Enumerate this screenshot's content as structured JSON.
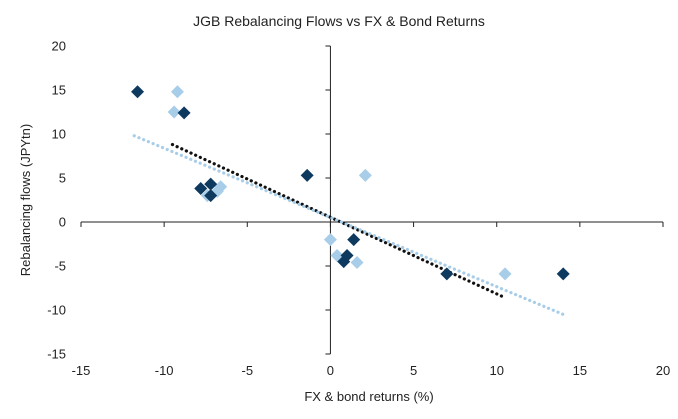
{
  "chart_data": {
    "type": "scatter",
    "title": "JGB Rebalancing Flows vs FX & Bond Returns",
    "xlabel": "FX & bond returns (%)",
    "ylabel": "Rebalancing flows  (JPYtn)",
    "xlim": [
      -15,
      20
    ],
    "ylim": [
      -15,
      20
    ],
    "xticks": [
      -15,
      -10,
      -5,
      0,
      5,
      10,
      15,
      20
    ],
    "yticks": [
      -15,
      -10,
      -5,
      0,
      5,
      10,
      15,
      20
    ],
    "grid": false,
    "legend": "none",
    "series": [
      {
        "color": "#0f3a5f",
        "marker": "diamond",
        "points": [
          {
            "x": -11.6,
            "y": 14.8
          },
          {
            "x": -8.8,
            "y": 12.4
          },
          {
            "x": -7.8,
            "y": 3.8
          },
          {
            "x": -7.2,
            "y": 4.3
          },
          {
            "x": -7.2,
            "y": 3.0
          },
          {
            "x": -1.4,
            "y": 5.3
          },
          {
            "x": 1.4,
            "y": -2.0
          },
          {
            "x": 1.0,
            "y": -3.8
          },
          {
            "x": 0.8,
            "y": -4.5
          },
          {
            "x": 7.0,
            "y": -5.9
          },
          {
            "x": 14.0,
            "y": -5.9
          }
        ],
        "trend": {
          "color": "#111111",
          "from": [
            -9.5,
            8.8
          ],
          "to": [
            10.5,
            -8.6
          ]
        }
      },
      {
        "color": "#a8cde8",
        "marker": "diamond",
        "points": [
          {
            "x": -9.2,
            "y": 14.8
          },
          {
            "x": -9.4,
            "y": 12.5
          },
          {
            "x": -6.6,
            "y": 4.0
          },
          {
            "x": -6.8,
            "y": 3.5
          },
          {
            "x": -7.4,
            "y": 3.0
          },
          {
            "x": 2.1,
            "y": 5.3
          },
          {
            "x": 0.0,
            "y": -2.0
          },
          {
            "x": 0.4,
            "y": -3.8
          },
          {
            "x": 1.6,
            "y": -4.6
          },
          {
            "x": 10.5,
            "y": -5.9
          }
        ],
        "trend": {
          "color": "#a8cde8",
          "from": [
            -11.8,
            9.8
          ],
          "to": [
            14.0,
            -10.5
          ]
        }
      }
    ]
  }
}
